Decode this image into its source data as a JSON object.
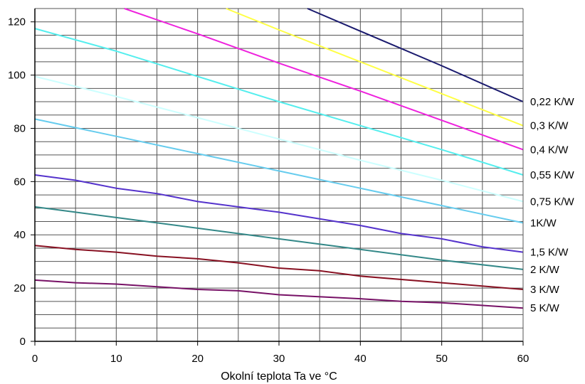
{
  "chart_data": {
    "type": "line",
    "xlabel": "Okolní teplota Ta ve °C",
    "ylabel": "",
    "xlim": [
      0,
      60
    ],
    "ylim": [
      0,
      125
    ],
    "x_ticks": [
      0,
      10,
      20,
      30,
      40,
      50,
      60
    ],
    "y_ticks": [
      0,
      20,
      40,
      60,
      80,
      100,
      120
    ],
    "grid": true,
    "legend": "series labels at right end of lines",
    "series": [
      {
        "name": "0,22 K/W",
        "color": "#1a1a6e",
        "points": [
          [
            33.5,
            125
          ],
          [
            40,
            116.5
          ],
          [
            50,
            103.5
          ],
          [
            60,
            90
          ]
        ]
      },
      {
        "name": "0,3 K/W",
        "color": "#ffff44",
        "points": [
          [
            23.5,
            125
          ],
          [
            30,
            117
          ],
          [
            40,
            105
          ],
          [
            50,
            93
          ],
          [
            60,
            81
          ]
        ]
      },
      {
        "name": "0,4 K/W",
        "color": "#ee22dd",
        "points": [
          [
            11,
            125
          ],
          [
            20,
            115.5
          ],
          [
            30,
            104.5
          ],
          [
            40,
            94
          ],
          [
            50,
            83
          ],
          [
            60,
            72
          ]
        ]
      },
      {
        "name": "0,55 K/W",
        "color": "#55eeee",
        "points": [
          [
            0,
            117.5
          ],
          [
            10,
            109
          ],
          [
            20,
            99.5
          ],
          [
            30,
            90
          ],
          [
            40,
            81
          ],
          [
            50,
            72
          ],
          [
            60,
            62.5
          ]
        ]
      },
      {
        "name": "0,75 K/W",
        "color": "#ccffff",
        "points": [
          [
            0,
            99.5
          ],
          [
            10,
            92
          ],
          [
            20,
            84
          ],
          [
            30,
            76
          ],
          [
            40,
            68
          ],
          [
            50,
            60.5
          ],
          [
            60,
            52.5
          ]
        ]
      },
      {
        "name": "1K/W",
        "color": "#66ccee",
        "points": [
          [
            0,
            83.5
          ],
          [
            10,
            77
          ],
          [
            20,
            70.5
          ],
          [
            30,
            64
          ],
          [
            40,
            57.5
          ],
          [
            50,
            51
          ],
          [
            60,
            44.5
          ]
        ]
      },
      {
        "name": "1,5 K/W",
        "color": "#5533cc",
        "points": [
          [
            0,
            62.5
          ],
          [
            5,
            60.5
          ],
          [
            10,
            57.5
          ],
          [
            15,
            55.5
          ],
          [
            20,
            52.5
          ],
          [
            30,
            48.5
          ],
          [
            40,
            43.5
          ],
          [
            45,
            40.5
          ],
          [
            50,
            38.5
          ],
          [
            55,
            35.5
          ],
          [
            60,
            33.5
          ]
        ]
      },
      {
        "name": "2 K/W",
        "color": "#338888",
        "points": [
          [
            0,
            50.5
          ],
          [
            5,
            48.5
          ],
          [
            10,
            46.5
          ],
          [
            20,
            42.5
          ],
          [
            30,
            38.5
          ],
          [
            40,
            34.5
          ],
          [
            50,
            30.5
          ],
          [
            60,
            27
          ]
        ]
      },
      {
        "name": "3 K/W",
        "color": "#881122",
        "points": [
          [
            0,
            36
          ],
          [
            5,
            34.5
          ],
          [
            10,
            33.5
          ],
          [
            15,
            32
          ],
          [
            20,
            31
          ],
          [
            25,
            29.5
          ],
          [
            30,
            27.5
          ],
          [
            35,
            26.5
          ],
          [
            40,
            24.5
          ],
          [
            50,
            22
          ],
          [
            60,
            19.5
          ]
        ]
      },
      {
        "name": "5 K/W",
        "color": "#771166",
        "points": [
          [
            0,
            23
          ],
          [
            5,
            22
          ],
          [
            10,
            21.5
          ],
          [
            20,
            19.5
          ],
          [
            25,
            19
          ],
          [
            30,
            17.5
          ],
          [
            40,
            16
          ],
          [
            45,
            15
          ],
          [
            50,
            14.5
          ],
          [
            60,
            12.5
          ]
        ]
      }
    ]
  }
}
